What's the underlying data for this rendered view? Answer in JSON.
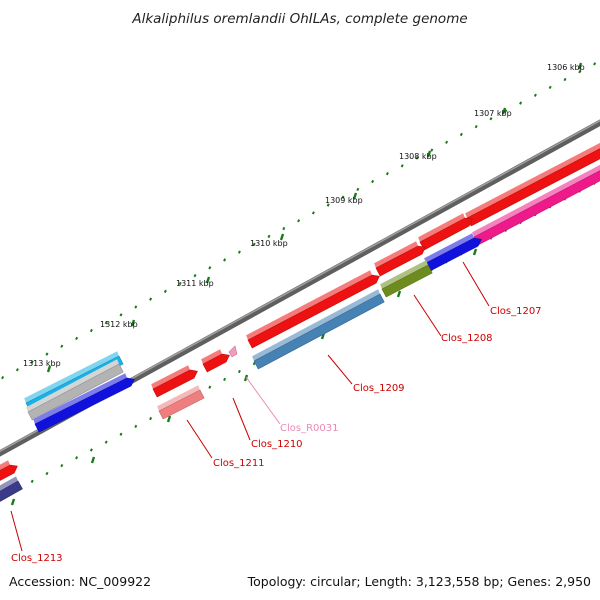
{
  "title": "Alkaliphilus oremlandii OhILAs, complete genome",
  "accession": "Accession: NC_009922",
  "summary": "Topology: circular; Length: 3,123,558 bp; Genes: 2,950",
  "ruler": {
    "labels": [
      "1306 kbp",
      "1307 kbp",
      "1308 kbp",
      "1309 kbp",
      "1310 kbp",
      "1311 kbp",
      "1312 kbp",
      "1313 kbp"
    ],
    "tick_color": "#1a7a1a"
  },
  "backbone_color": "#7f7f7f",
  "genes": [
    {
      "id": "Clos_1207",
      "color": "#cc0000",
      "label_color": "#cc0000",
      "track": "reverse"
    },
    {
      "id": "Clos_1208",
      "color": "#cc0000",
      "label_color": "#cc0000",
      "track": "reverse"
    },
    {
      "id": "Clos_1209",
      "color": "#cc0000",
      "label_color": "#cc0000",
      "track": "reverse"
    },
    {
      "id": "Clos_R0031",
      "color": "#f29ac0",
      "label_color": "#e98ab5",
      "track": "reverse"
    },
    {
      "id": "Clos_1210",
      "color": "#cc0000",
      "label_color": "#cc0000",
      "track": "reverse"
    },
    {
      "id": "Clos_1211",
      "color": "#cc0000",
      "label_color": "#cc0000",
      "track": "reverse"
    },
    {
      "id": "Clos_1213",
      "color": "#cc0000",
      "label_color": "#cc0000",
      "track": "reverse"
    }
  ],
  "track_colors": {
    "red": "#ee1111",
    "magenta": "#ee1a8a",
    "blue": "#1111dd",
    "olive": "#6e8c1e",
    "steel": "#4682b4",
    "salmon": "#ef7f7f",
    "pink": "#f29ac0",
    "cyan": "#1ab2e6",
    "grey": "#b3b3b3",
    "navy": "#3a3a88"
  }
}
